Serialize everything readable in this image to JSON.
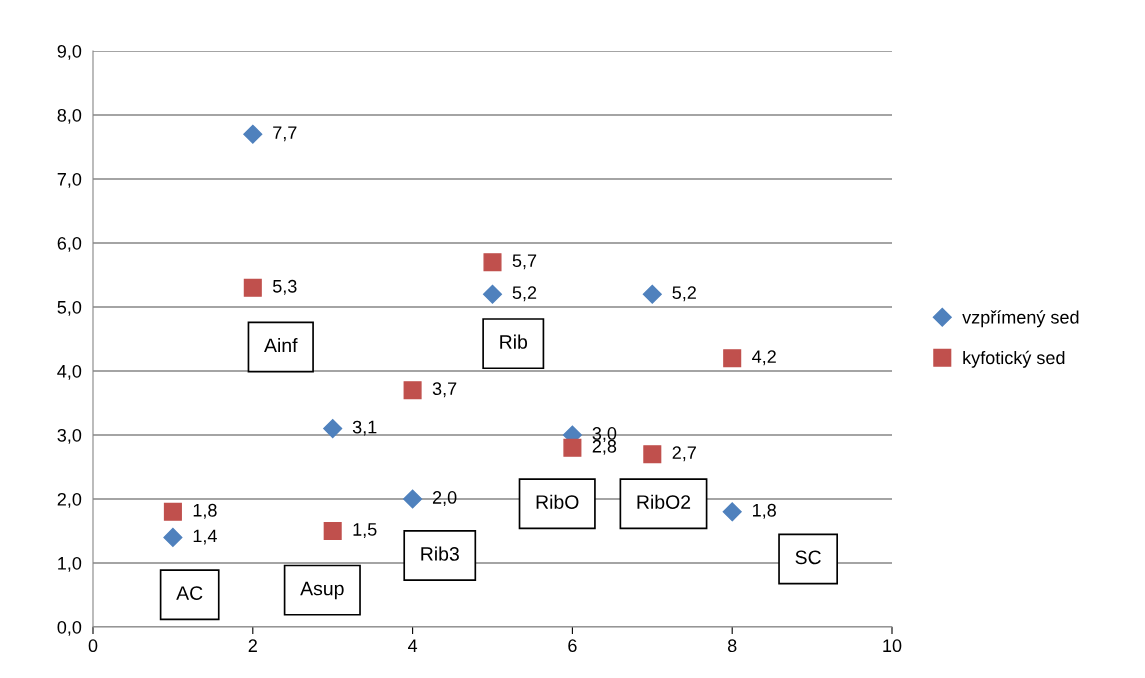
{
  "chart_data": {
    "type": "scatter",
    "x": [
      1,
      2,
      3,
      4,
      5,
      6,
      7,
      8
    ],
    "series": [
      {
        "name": "vzpřímený sed",
        "color": "#4f81bd",
        "marker": "diamond",
        "values": [
          1.4,
          7.7,
          3.1,
          2.0,
          5.2,
          3.0,
          5.2,
          1.8
        ],
        "value_labels": [
          "1,4",
          "7,7",
          "3,1",
          "2,0",
          "5,2",
          "3,0",
          "5,2",
          "1,8"
        ]
      },
      {
        "name": "kyfotický sed",
        "color": "#c0504d",
        "marker": "square",
        "values": [
          1.8,
          5.3,
          1.5,
          3.7,
          5.7,
          2.8,
          2.7,
          4.2
        ],
        "value_labels": [
          "1,8",
          "5,3",
          "1,5",
          "3,7",
          "5,7",
          "2,8",
          "2,7",
          "4,2"
        ]
      }
    ],
    "xlim": [
      0,
      10
    ],
    "xticks": [
      0,
      2,
      4,
      6,
      8,
      10
    ],
    "ylim": [
      0,
      9
    ],
    "yticks": [
      {
        "value": 0,
        "label": "0,0"
      },
      {
        "value": 1,
        "label": "1,0"
      },
      {
        "value": 2,
        "label": "2,0"
      },
      {
        "value": 3,
        "label": "3,0"
      },
      {
        "value": 4,
        "label": "4,0"
      },
      {
        "value": 5,
        "label": "5,0"
      },
      {
        "value": 6,
        "label": "6,0"
      },
      {
        "value": 7,
        "label": "7,0"
      },
      {
        "value": 8,
        "label": "8,0"
      },
      {
        "value": 9,
        "label": "9,0"
      }
    ],
    "grid": "y",
    "legend": "right",
    "annotations": [
      "AC",
      "Asup",
      "Ainf",
      "Rib3",
      "Rib",
      "RibO",
      "RibO2",
      "SC"
    ]
  }
}
